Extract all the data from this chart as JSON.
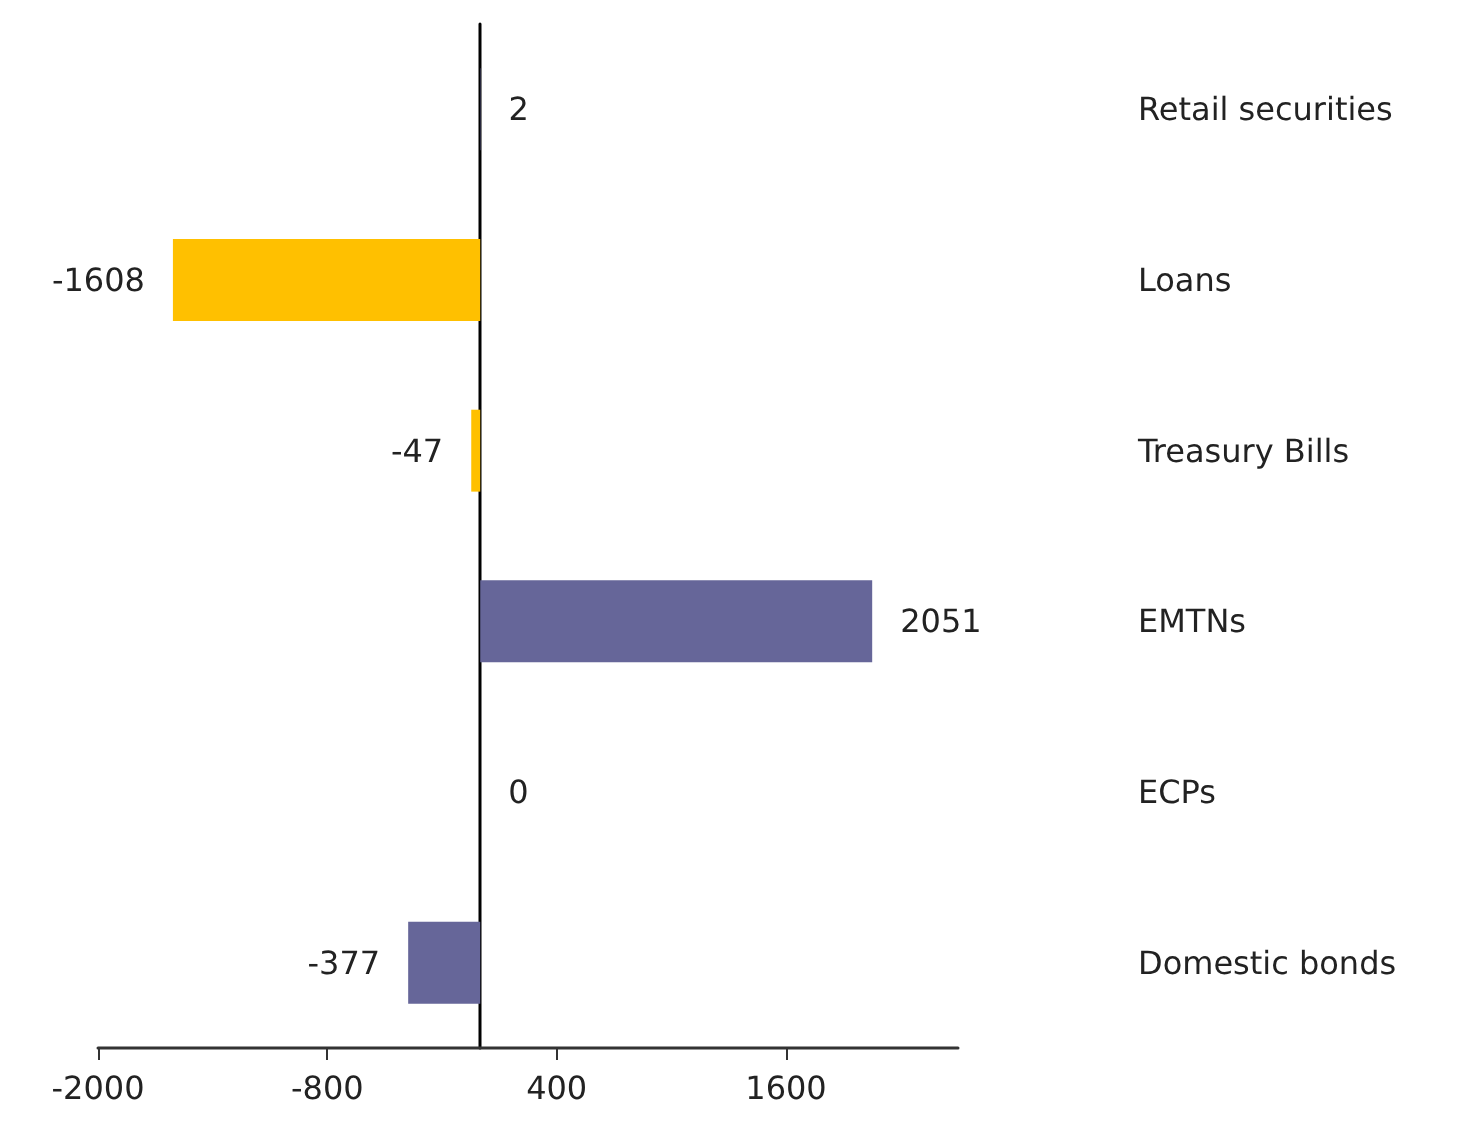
{
  "chart_data": {
    "type": "bar",
    "orientation": "horizontal",
    "categories": [
      "Retail securities",
      "Loans",
      "Treasury Bills",
      "EMTNs",
      "ECPs",
      "Domestic bonds"
    ],
    "values": [
      2,
      -1608,
      -47,
      2051,
      0,
      -377
    ],
    "colors": [
      "#666699",
      "#ffc000",
      "#ffc000",
      "#666699",
      "#666699",
      "#666699"
    ],
    "xlim": [
      -2000,
      2500
    ],
    "xticks": [
      -2000,
      -800,
      400,
      1600
    ],
    "data_labels": true
  }
}
